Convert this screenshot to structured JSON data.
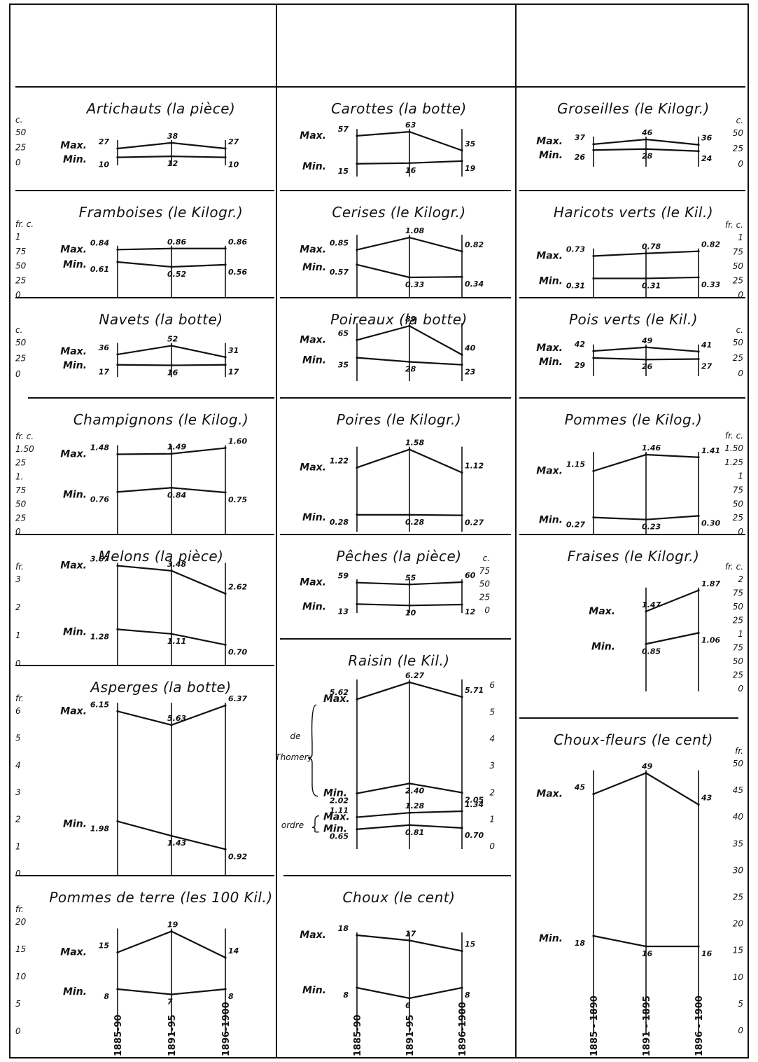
{
  "periods": {
    "long": [
      "1885 - 1890",
      "1891 - 1895",
      "1896 - 1900"
    ],
    "short": [
      "1885-90",
      "1891-95",
      "1896-1900"
    ]
  },
  "labels": {
    "max": "Max.",
    "min": "Min.",
    "de": "de",
    "thomery": "Thomery",
    "ord": "ordre"
  },
  "chart_data": [
    {
      "id": "artichauts",
      "type": "line",
      "title": "Artichauts (la pièce)",
      "unit": "c.",
      "ticks": [
        "50",
        "25",
        "0"
      ],
      "series": [
        {
          "name": "Max.",
          "values": [
            27,
            38,
            27
          ],
          "labels": [
            "27",
            "38",
            "27"
          ]
        },
        {
          "name": "Min.",
          "values": [
            10,
            12,
            10
          ],
          "labels": [
            "10",
            "12",
            "10"
          ]
        }
      ]
    },
    {
      "id": "carottes",
      "type": "line",
      "title": "Carottes (la botte)",
      "unit": "",
      "ticks": [],
      "series": [
        {
          "name": "Max.",
          "values": [
            57,
            63,
            35
          ],
          "labels": [
            "57",
            "63",
            "35"
          ]
        },
        {
          "name": "Min.",
          "values": [
            15,
            16,
            19
          ],
          "labels": [
            "15",
            "16",
            "19"
          ]
        }
      ]
    },
    {
      "id": "groseilles",
      "type": "line",
      "title": "Groseilles (le Kilogr.)",
      "unit": "c.",
      "ticks": [
        "50",
        "25",
        "0"
      ],
      "series": [
        {
          "name": "Max.",
          "values": [
            37,
            46,
            36
          ],
          "labels": [
            "37",
            "46",
            "36"
          ]
        },
        {
          "name": "Min.",
          "values": [
            26,
            28,
            24
          ],
          "labels": [
            "26",
            "28",
            "24"
          ]
        }
      ]
    },
    {
      "id": "framboises",
      "type": "line",
      "title": "Framboises (le Kilogr.)",
      "unit": "fr. c.",
      "ticks": [
        "1",
        "75",
        "50",
        "25",
        "0"
      ],
      "series": [
        {
          "name": "Max.",
          "values": [
            0.84,
            0.86,
            0.86
          ],
          "labels": [
            "0.84",
            "0.86",
            "0.86"
          ]
        },
        {
          "name": "Min.",
          "values": [
            0.61,
            0.52,
            0.56
          ],
          "labels": [
            "0.61",
            "0.52",
            "0.56"
          ]
        }
      ]
    },
    {
      "id": "cerises",
      "type": "line",
      "title": "Cerises (le Kilogr.)",
      "unit": "",
      "ticks": [],
      "series": [
        {
          "name": "Max.",
          "values": [
            0.85,
            1.08,
            0.82
          ],
          "labels": [
            "0.85",
            "1.08",
            "0.82"
          ]
        },
        {
          "name": "Min.",
          "values": [
            0.57,
            0.33,
            0.34
          ],
          "labels": [
            "0.57",
            "0.33",
            "0.34"
          ]
        }
      ]
    },
    {
      "id": "haricots",
      "type": "line",
      "title": "Haricots verts (le Kil.)",
      "unit": "fr. c.",
      "ticks": [
        "1",
        "75",
        "50",
        "25",
        "0"
      ],
      "series": [
        {
          "name": "Max.",
          "values": [
            0.73,
            0.78,
            0.82
          ],
          "labels": [
            "0.73",
            "0.78",
            "0.82"
          ]
        },
        {
          "name": "Min.",
          "values": [
            0.31,
            0.31,
            0.33
          ],
          "labels": [
            "0.31",
            "0.31",
            "0.33"
          ]
        }
      ]
    },
    {
      "id": "navets",
      "type": "line",
      "title": "Navets (la botte)",
      "unit": "c.",
      "ticks": [
        "50",
        "25",
        "0"
      ],
      "series": [
        {
          "name": "Max.",
          "values": [
            36,
            52,
            31
          ],
          "labels": [
            "36",
            "52",
            "31"
          ]
        },
        {
          "name": "Min.",
          "values": [
            17,
            16,
            17
          ],
          "labels": [
            "17",
            "16",
            "17"
          ]
        }
      ]
    },
    {
      "id": "poireaux",
      "type": "line",
      "title": "Poireaux (la botte)",
      "unit": "",
      "ticks": [],
      "series": [
        {
          "name": "Max.",
          "values": [
            65,
            89,
            40
          ],
          "labels": [
            "65",
            "89",
            "40"
          ]
        },
        {
          "name": "Min.",
          "values": [
            35,
            28,
            23
          ],
          "labels": [
            "35",
            "28",
            "23"
          ]
        }
      ]
    },
    {
      "id": "poisverts",
      "type": "line",
      "title": "Pois verts (le Kil.)",
      "unit": "c.",
      "ticks": [
        "50",
        "25",
        "0"
      ],
      "series": [
        {
          "name": "Max.",
          "values": [
            42,
            49,
            41
          ],
          "labels": [
            "42",
            "49",
            "41"
          ]
        },
        {
          "name": "Min.",
          "values": [
            29,
            26,
            27
          ],
          "labels": [
            "29",
            "26",
            "27"
          ]
        }
      ]
    },
    {
      "id": "champignons",
      "type": "line",
      "title": "Champignons (le Kilog.)",
      "unit": "fr. c.",
      "ticks": [
        "1.50",
        "25",
        "1.",
        "75",
        "50",
        "25",
        "0"
      ],
      "series": [
        {
          "name": "Max.",
          "values": [
            1.48,
            1.49,
            1.6
          ],
          "labels": [
            "1.48",
            "1.49",
            "1.60"
          ]
        },
        {
          "name": "Min.",
          "values": [
            0.76,
            0.84,
            0.75
          ],
          "labels": [
            "0.76",
            "0.84",
            "0.75"
          ]
        }
      ]
    },
    {
      "id": "poires",
      "type": "line",
      "title": "Poires (le Kilogr.)",
      "unit": "",
      "ticks": [],
      "series": [
        {
          "name": "Max.",
          "values": [
            1.22,
            1.58,
            1.12
          ],
          "labels": [
            "1.22",
            "1.58",
            "1.12"
          ]
        },
        {
          "name": "Min.",
          "values": [
            0.28,
            0.28,
            0.27
          ],
          "labels": [
            "0.28",
            "0.28",
            "0.27"
          ]
        }
      ]
    },
    {
      "id": "pommes",
      "type": "line",
      "title": "Pommes (le Kilog.)",
      "unit": "fr. c.",
      "ticks": [
        "1.50",
        "1.25",
        "1",
        "75",
        "50",
        "25",
        "0"
      ],
      "series": [
        {
          "name": "Max.",
          "values": [
            1.15,
            1.46,
            1.41
          ],
          "labels": [
            "1.15",
            "1.46",
            "1.41"
          ]
        },
        {
          "name": "Min.",
          "values": [
            0.27,
            0.23,
            0.3
          ],
          "labels": [
            "0.27",
            "0.23",
            "0.30"
          ]
        }
      ]
    },
    {
      "id": "melons",
      "type": "line",
      "title": "Melons (la pièce)",
      "unit": "fr.",
      "ticks": [
        "3",
        "2",
        "1",
        "0"
      ],
      "series": [
        {
          "name": "Max.",
          "values": [
            3.67,
            3.48,
            2.62
          ],
          "labels": [
            "3.67",
            "3.48",
            "2.62"
          ]
        },
        {
          "name": "Min.",
          "values": [
            1.28,
            1.11,
            0.7
          ],
          "labels": [
            "1.28",
            "1.11",
            "0.70"
          ]
        }
      ]
    },
    {
      "id": "peches",
      "type": "line",
      "title": "Pêches (la pièce)",
      "unit": "c.",
      "ticks": [
        "75",
        "50",
        "25",
        "0"
      ],
      "series": [
        {
          "name": "Max.",
          "values": [
            59,
            55,
            60
          ],
          "labels": [
            "59",
            "55",
            "60"
          ]
        },
        {
          "name": "Min.",
          "values": [
            13,
            10,
            12
          ],
          "labels": [
            "13",
            "10",
            "12"
          ]
        }
      ]
    },
    {
      "id": "fraises",
      "type": "line",
      "title": "Fraises (le Kilogr.)",
      "unit": "fr. c.",
      "ticks": [
        "2",
        "75",
        "50",
        "25",
        "1",
        "75",
        "50",
        "25",
        "0"
      ],
      "series": [
        {
          "name": "Max.",
          "values": [
            null,
            1.47,
            1.87
          ],
          "labels": [
            "",
            "1.47",
            "1.87"
          ]
        },
        {
          "name": "Min.",
          "values": [
            null,
            0.85,
            1.06
          ],
          "labels": [
            "",
            "0.85",
            "1.06"
          ]
        }
      ]
    },
    {
      "id": "asperges",
      "type": "line",
      "title": "Asperges (la botte)",
      "unit": "fr.",
      "ticks": [
        "6",
        "5",
        "4",
        "3",
        "2",
        "1",
        "0"
      ],
      "series": [
        {
          "name": "Max.",
          "values": [
            6.15,
            5.63,
            6.37
          ],
          "labels": [
            "6.15",
            "5.63",
            "6.37"
          ]
        },
        {
          "name": "Min.",
          "values": [
            1.98,
            1.43,
            0.92
          ],
          "labels": [
            "1.98",
            "1.43",
            "0.92"
          ]
        }
      ]
    },
    {
      "id": "raisin",
      "type": "line",
      "title": "Raisin (le Kil.)",
      "unit": "",
      "ticks": [
        "6",
        "5",
        "4",
        "3",
        "2",
        "1",
        "0"
      ],
      "series": [
        {
          "name": "de Thomery Max.",
          "values": [
            5.62,
            6.27,
            5.71
          ],
          "labels": [
            "5.62",
            "6.27",
            "5.71"
          ]
        },
        {
          "name": "de Thomery Min.",
          "values": [
            2.02,
            2.4,
            2.05
          ],
          "labels": [
            "2.02",
            "2.40",
            "2.05"
          ]
        },
        {
          "name": "ordre Max.",
          "values": [
            1.11,
            1.28,
            1.34
          ],
          "labels": [
            "1.11",
            "1.28",
            "1.34"
          ]
        },
        {
          "name": "ordre Min.",
          "values": [
            0.65,
            0.81,
            0.7
          ],
          "labels": [
            "0.65",
            "0.81",
            "0.70"
          ]
        }
      ]
    },
    {
      "id": "chouxfleurs",
      "type": "line",
      "title": "Choux-fleurs (le cent)",
      "unit": "fr.",
      "ticks": [
        "50",
        "45",
        "40",
        "35",
        "30",
        "25",
        "20",
        "15",
        "10",
        "5",
        "0"
      ],
      "series": [
        {
          "name": "Max.",
          "values": [
            45,
            49,
            43
          ],
          "labels": [
            "45",
            "49",
            "43"
          ]
        },
        {
          "name": "Min.",
          "values": [
            18,
            16,
            16
          ],
          "labels": [
            "18",
            "16",
            "16"
          ]
        }
      ]
    },
    {
      "id": "pommesdeterre",
      "type": "line",
      "title": "Pommes de terre (les 100 Kil.)",
      "unit": "fr.",
      "ticks": [
        "20",
        "15",
        "10",
        "5",
        "0"
      ],
      "series": [
        {
          "name": "Max.",
          "values": [
            15,
            19,
            14
          ],
          "labels": [
            "15",
            "19",
            "14"
          ]
        },
        {
          "name": "Min.",
          "values": [
            8,
            7,
            8
          ],
          "labels": [
            "8",
            "7",
            "8"
          ]
        }
      ]
    },
    {
      "id": "choux",
      "type": "line",
      "title": "Choux (le cent)",
      "unit": "",
      "ticks": [],
      "series": [
        {
          "name": "Max.",
          "values": [
            18,
            17,
            15
          ],
          "labels": [
            "18",
            "17",
            "15"
          ]
        },
        {
          "name": "Min.",
          "values": [
            8,
            6,
            8
          ],
          "labels": [
            "8",
            "6",
            "8"
          ]
        }
      ]
    }
  ]
}
